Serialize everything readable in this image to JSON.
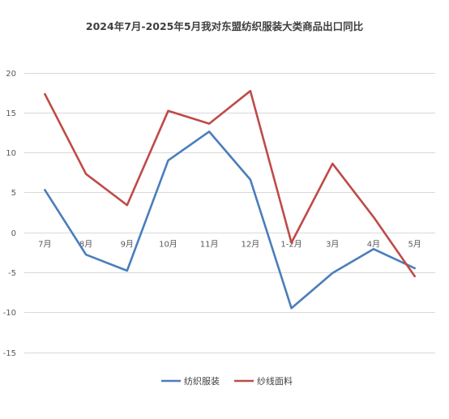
{
  "chart_data": {
    "type": "line",
    "title": "2024年7月-2025年5月我对东盟纺织服装大类商品出口同比",
    "xlabel": "",
    "ylabel": "",
    "categories": [
      "7月",
      "8月",
      "9月",
      "10月",
      "11月",
      "12月",
      "1-2月",
      "3月",
      "4月",
      "5月"
    ],
    "ylim": [
      -15,
      20
    ],
    "yticks": [
      -15,
      -10,
      -5,
      0,
      5,
      10,
      15,
      20
    ],
    "grid": true,
    "legend_position": "bottom",
    "series": [
      {
        "name": "纺织服装",
        "color": "#4a7ebb",
        "values": [
          5.3,
          -2.8,
          -4.8,
          9.0,
          12.6,
          6.6,
          -9.5,
          -5.1,
          -2.1,
          -4.5
        ]
      },
      {
        "name": "纱线面料",
        "color": "#be4b48",
        "values": [
          17.3,
          7.3,
          3.4,
          15.2,
          13.6,
          17.7,
          -1.3,
          8.6,
          1.9,
          -5.5
        ]
      }
    ]
  }
}
